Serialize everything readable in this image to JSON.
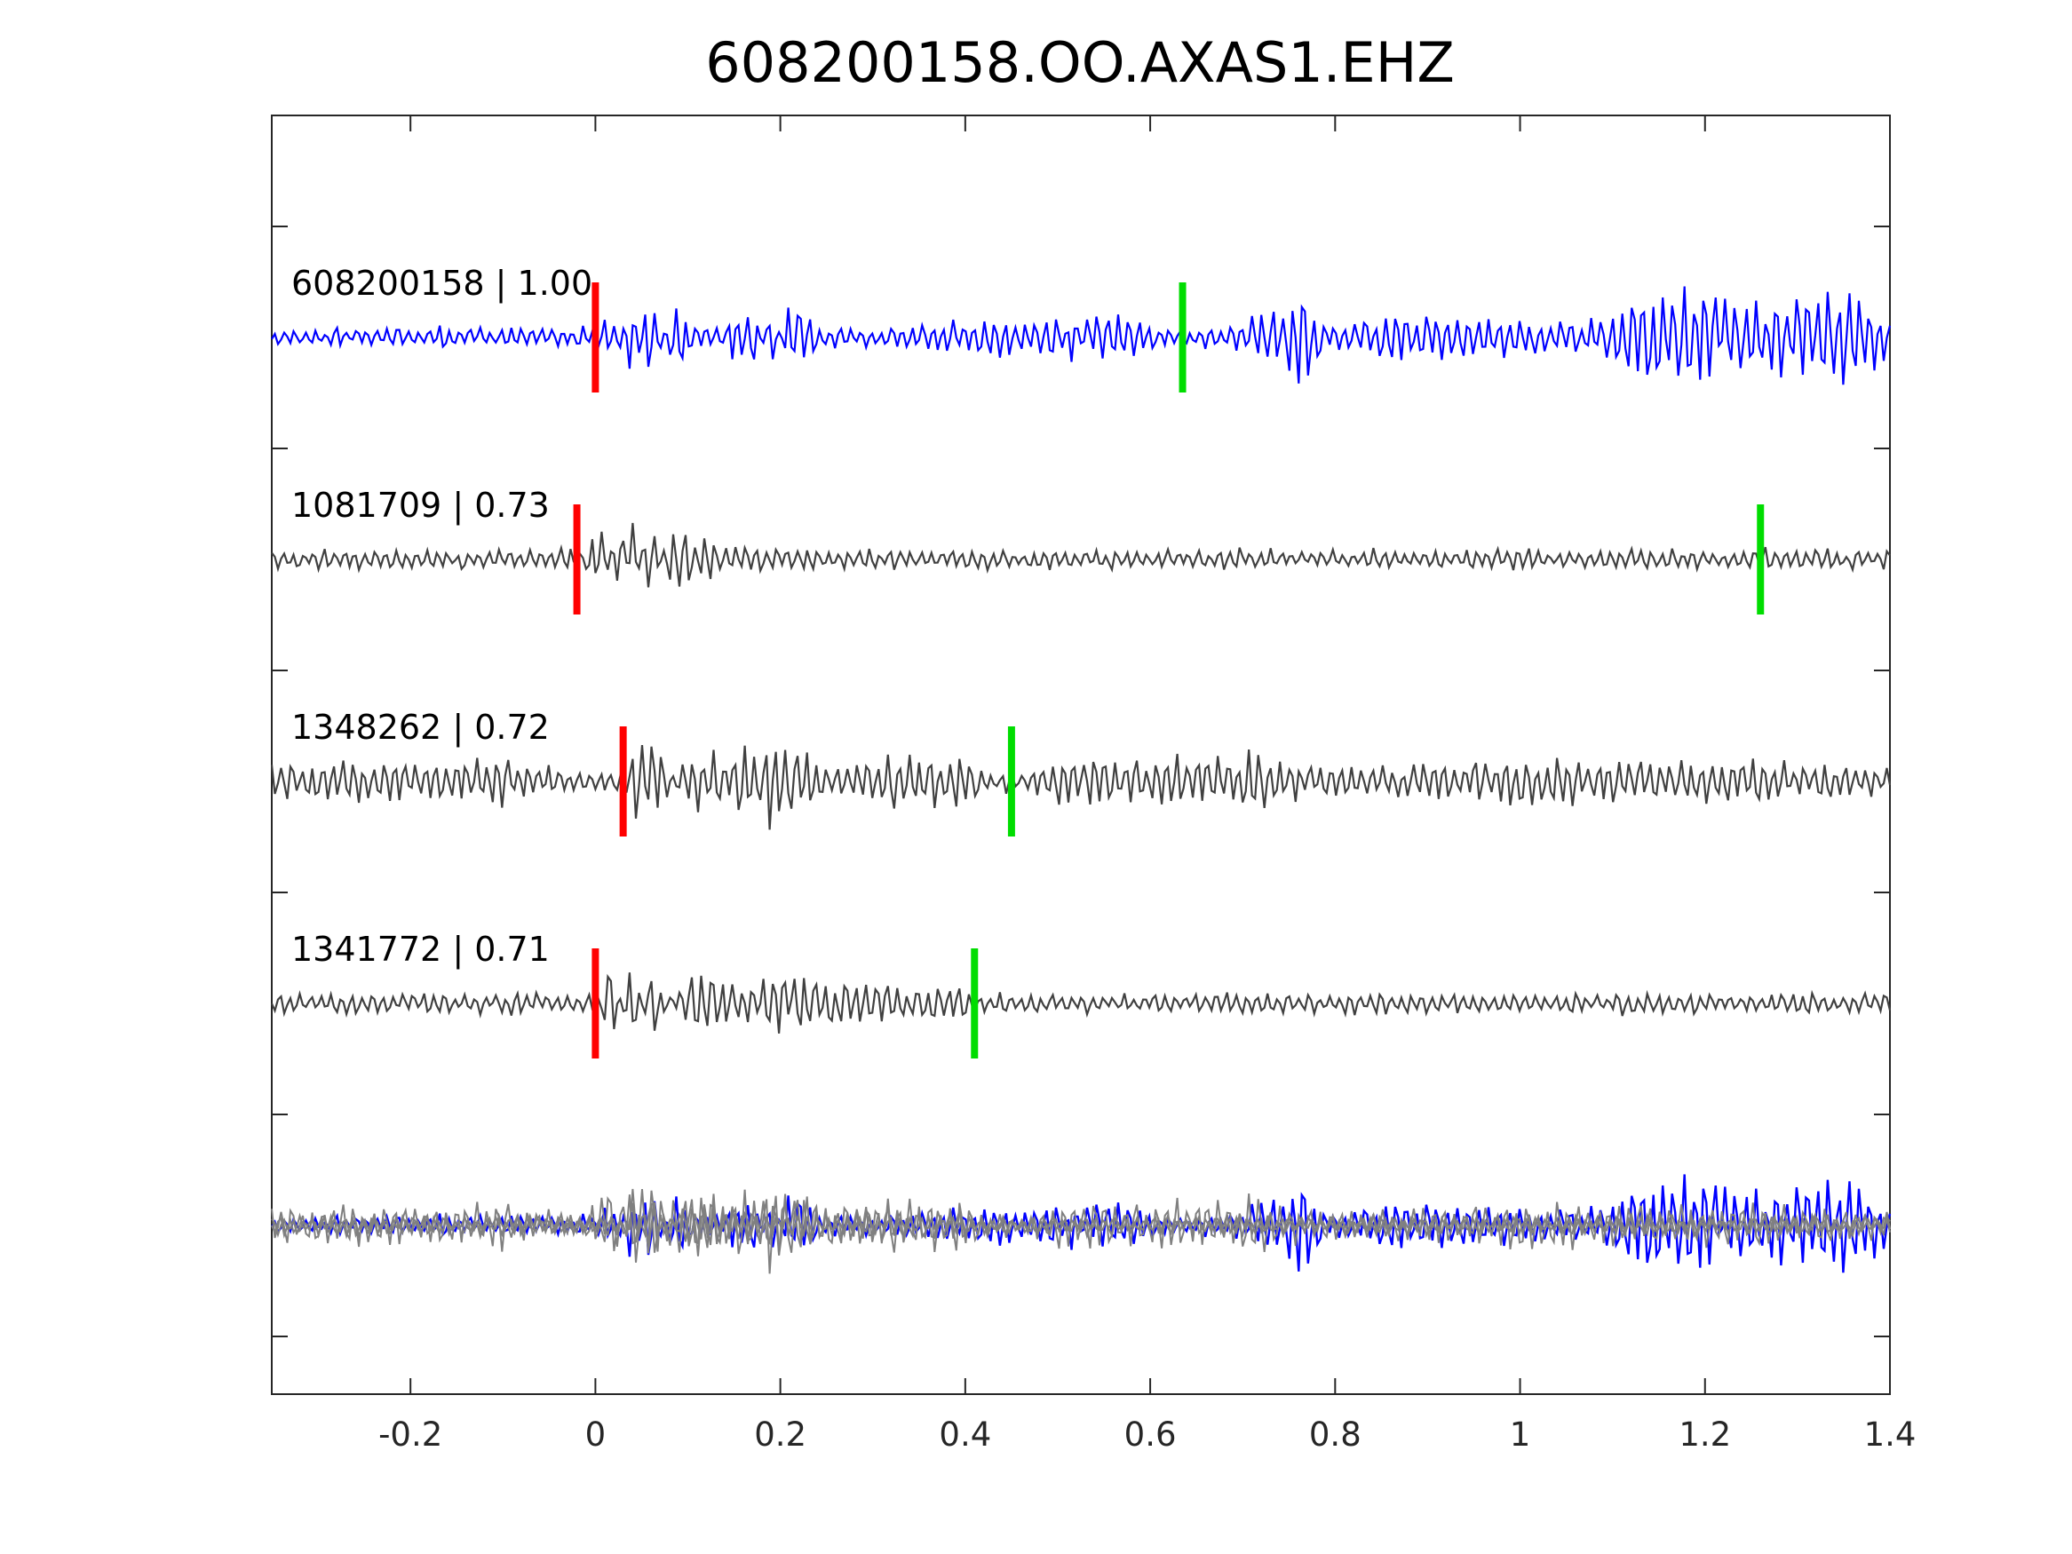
{
  "chart_data": {
    "type": "line",
    "title": "608200158.OO.AXAS1.EHZ",
    "xlabel": "",
    "ylabel": "",
    "xlim": [
      -0.35,
      1.4
    ],
    "x_ticks": [
      -0.2,
      0,
      0.2,
      0.4,
      0.6,
      0.8,
      1,
      1.2,
      1.4
    ],
    "x_tick_labels": [
      "-0.2",
      "0",
      "0.2",
      "0.4",
      "0.6",
      "0.8",
      "1",
      "1.2",
      "1.4"
    ],
    "grid": false,
    "legend": "none",
    "colors": {
      "template": "#0000ff",
      "match": "#404040",
      "overlay_match": "#808080",
      "p_pick": "#ff0000",
      "s_pick": "#00dd00",
      "axis": "#262626"
    },
    "series": [
      {
        "label": "608200158 | 1.00",
        "color": "#0000ff",
        "p_pick": 0.0,
        "s_pick": 0.635,
        "points": [
          [
            -0.35,
            0.0
          ],
          [
            -0.3,
            0.05
          ],
          [
            -0.25,
            0.1
          ],
          [
            -0.2,
            -0.05
          ],
          [
            -0.15,
            0.05
          ],
          [
            -0.1,
            0.0
          ],
          [
            -0.05,
            0.05
          ],
          [
            0.0,
            0.0
          ],
          [
            0.01,
            0.75
          ],
          [
            0.025,
            -1.0
          ],
          [
            0.04,
            1.0
          ],
          [
            0.06,
            -1.0
          ],
          [
            0.08,
            0.5
          ],
          [
            0.1,
            0.55
          ],
          [
            0.12,
            -0.4
          ],
          [
            0.15,
            0.6
          ],
          [
            0.17,
            0.55
          ],
          [
            0.19,
            -0.6
          ],
          [
            0.21,
            0.65
          ],
          [
            0.25,
            0.1
          ],
          [
            0.3,
            0.1
          ],
          [
            0.35,
            0.3
          ],
          [
            0.4,
            0.3
          ],
          [
            0.45,
            0.35
          ],
          [
            0.5,
            0.4
          ],
          [
            0.55,
            0.45
          ],
          [
            0.6,
            0.3
          ],
          [
            0.635,
            0.0
          ],
          [
            0.7,
            0.25
          ],
          [
            0.76,
            0.85
          ],
          [
            0.8,
            0.2
          ],
          [
            0.85,
            0.4
          ],
          [
            0.9,
            0.4
          ],
          [
            0.95,
            0.35
          ],
          [
            1.0,
            0.4
          ],
          [
            1.05,
            0.3
          ],
          [
            1.1,
            0.35
          ],
          [
            1.15,
            0.9
          ],
          [
            1.2,
            0.85
          ],
          [
            1.25,
            0.75
          ],
          [
            1.3,
            0.75
          ],
          [
            1.35,
            0.85
          ],
          [
            1.4,
            0.4
          ]
        ]
      },
      {
        "label": "1081709 | 0.73",
        "color": "#404040",
        "p_pick": -0.02,
        "s_pick": 1.26,
        "points": [
          [
            -0.35,
            0.0
          ],
          [
            -0.3,
            0.05
          ],
          [
            -0.2,
            0.05
          ],
          [
            -0.1,
            0.05
          ],
          [
            -0.02,
            0.0
          ],
          [
            0.01,
            0.75
          ],
          [
            0.025,
            -1.0
          ],
          [
            0.04,
            0.8
          ],
          [
            0.06,
            -0.9
          ],
          [
            0.08,
            0.65
          ],
          [
            0.12,
            0.35
          ],
          [
            0.2,
            0.2
          ],
          [
            0.3,
            0.15
          ],
          [
            0.4,
            0.15
          ],
          [
            0.5,
            0.1
          ],
          [
            0.6,
            0.1
          ],
          [
            0.7,
            0.1
          ],
          [
            0.8,
            0.1
          ],
          [
            0.9,
            0.1
          ],
          [
            1.0,
            0.1
          ],
          [
            1.1,
            0.1
          ],
          [
            1.2,
            0.1
          ],
          [
            1.26,
            0.0
          ],
          [
            1.3,
            0.05
          ],
          [
            1.4,
            0.05
          ]
        ]
      },
      {
        "label": "1348262 | 0.72",
        "color": "#404040",
        "p_pick": 0.03,
        "s_pick": 0.45,
        "points": [
          [
            -0.35,
            0.3
          ],
          [
            -0.3,
            0.4
          ],
          [
            -0.2,
            0.35
          ],
          [
            -0.1,
            0.45
          ],
          [
            -0.02,
            0.2
          ],
          [
            0.03,
            0.0
          ],
          [
            0.05,
            1.0
          ],
          [
            0.06,
            -1.0
          ],
          [
            0.1,
            0.55
          ],
          [
            0.15,
            0.5
          ],
          [
            0.2,
            0.95
          ],
          [
            0.25,
            0.25
          ],
          [
            0.3,
            0.45
          ],
          [
            0.35,
            0.55
          ],
          [
            0.4,
            0.5
          ],
          [
            0.45,
            0.0
          ],
          [
            0.5,
            0.45
          ],
          [
            0.6,
            0.45
          ],
          [
            0.7,
            0.55
          ],
          [
            0.8,
            0.25
          ],
          [
            0.9,
            0.3
          ],
          [
            1.0,
            0.45
          ],
          [
            1.1,
            0.4
          ],
          [
            1.2,
            0.4
          ],
          [
            1.3,
            0.35
          ],
          [
            1.4,
            0.25
          ]
        ]
      },
      {
        "label": "1341772 | 0.71",
        "color": "#404040",
        "p_pick": 0.0,
        "s_pick": 0.41,
        "points": [
          [
            -0.35,
            0.0
          ],
          [
            -0.3,
            0.05
          ],
          [
            -0.2,
            0.05
          ],
          [
            -0.1,
            0.05
          ],
          [
            0.0,
            0.05
          ],
          [
            0.02,
            -0.85
          ],
          [
            0.04,
            0.85
          ],
          [
            0.06,
            -0.7
          ],
          [
            0.1,
            0.55
          ],
          [
            0.15,
            0.4
          ],
          [
            0.2,
            0.5
          ],
          [
            0.3,
            0.35
          ],
          [
            0.4,
            0.3
          ],
          [
            0.41,
            0.0
          ],
          [
            0.5,
            0.15
          ],
          [
            0.6,
            0.1
          ],
          [
            0.7,
            0.1
          ],
          [
            0.8,
            0.1
          ],
          [
            0.9,
            0.1
          ],
          [
            1.0,
            0.1
          ],
          [
            1.1,
            0.1
          ],
          [
            1.2,
            0.1
          ],
          [
            1.3,
            0.1
          ],
          [
            1.4,
            0.05
          ]
        ]
      }
    ],
    "overlay": {
      "description_ticks_only": true,
      "includes": [
        "608200158 | 1.00",
        "1081709 | 0.73",
        "1348262 | 0.72",
        "1341772 | 0.71"
      ]
    }
  }
}
